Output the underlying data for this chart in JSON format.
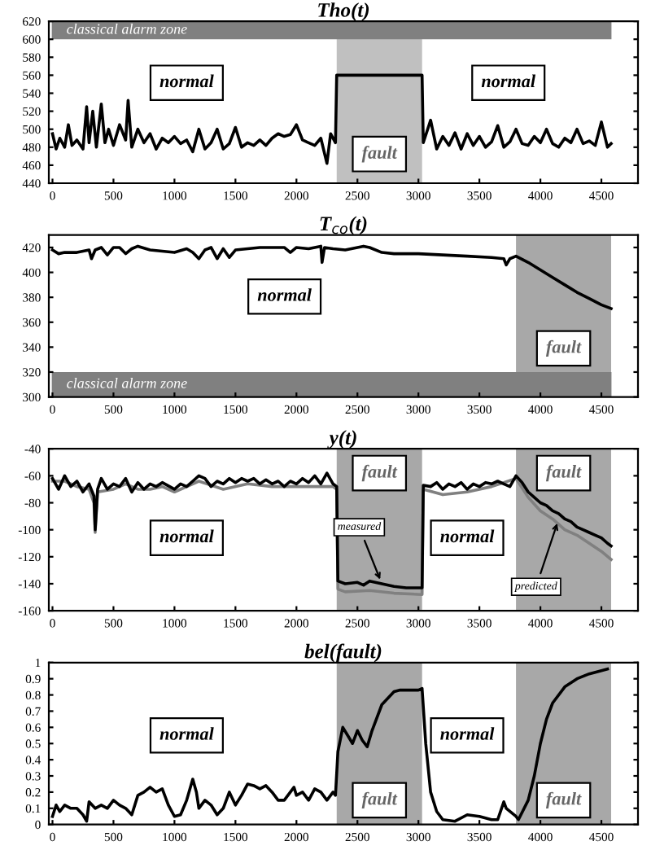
{
  "chart_data": [
    {
      "type": "line",
      "title": "Tho(t)",
      "xlim": [
        -30,
        4800
      ],
      "xticks": [
        0,
        500,
        1000,
        1500,
        2000,
        2500,
        3000,
        3500,
        4000,
        4500
      ],
      "ylim": [
        440,
        620
      ],
      "yticks": [
        440,
        460,
        480,
        500,
        520,
        540,
        560,
        580,
        600,
        620
      ],
      "grid": false,
      "legend": false,
      "x": [
        0,
        30,
        60,
        100,
        130,
        160,
        200,
        250,
        280,
        300,
        330,
        360,
        400,
        430,
        460,
        500,
        550,
        600,
        620,
        650,
        700,
        750,
        800,
        850,
        900,
        950,
        1000,
        1050,
        1100,
        1150,
        1200,
        1250,
        1300,
        1350,
        1400,
        1450,
        1500,
        1550,
        1600,
        1650,
        1700,
        1750,
        1800,
        1850,
        1900,
        1950,
        2000,
        2050,
        2100,
        2150,
        2200,
        2250,
        2280,
        2320,
        2330,
        3030,
        3040,
        3100,
        3150,
        3200,
        3250,
        3300,
        3350,
        3400,
        3450,
        3500,
        3550,
        3600,
        3650,
        3700,
        3750,
        3800,
        3850,
        3900,
        3950,
        4000,
        4050,
        4100,
        4150,
        4200,
        4250,
        4300,
        4350,
        4400,
        4450,
        4500,
        4550,
        4580
      ],
      "series": [
        {
          "color": "#000000",
          "values": [
            495,
            478,
            490,
            480,
            505,
            482,
            488,
            478,
            525,
            485,
            520,
            480,
            528,
            485,
            500,
            482,
            505,
            488,
            532,
            480,
            500,
            485,
            495,
            478,
            490,
            485,
            492,
            484,
            488,
            475,
            500,
            478,
            485,
            500,
            478,
            484,
            502,
            480,
            485,
            482,
            488,
            482,
            490,
            495,
            492,
            494,
            505,
            488,
            485,
            482,
            490,
            462,
            495,
            485,
            560,
            560,
            485,
            510,
            478,
            492,
            482,
            496,
            478,
            495,
            482,
            492,
            480,
            486,
            504,
            480,
            486,
            500,
            484,
            482,
            492,
            485,
            500,
            484,
            480,
            490,
            485,
            500,
            484,
            487,
            482,
            508,
            480,
            484
          ]
        }
      ],
      "annotations": [
        "normal",
        "normal"
      ],
      "bands": [
        {
          "axis": "x",
          "from": 2330,
          "to": 3030,
          "label": "fault",
          "color": "#c0c0c0"
        },
        {
          "axis": "y",
          "from": 600,
          "to": 620,
          "label": "classical alarm zone",
          "color": "#808080"
        }
      ]
    },
    {
      "type": "line",
      "title": "T$_{co}$(t)",
      "xlim": [
        -30,
        4800
      ],
      "xticks": [
        0,
        500,
        1000,
        1500,
        2000,
        2500,
        3000,
        3500,
        4000,
        4500
      ],
      "ylim": [
        300,
        430
      ],
      "yticks": [
        300,
        320,
        340,
        360,
        380,
        400,
        420
      ],
      "grid": false,
      "legend": false,
      "x": [
        0,
        50,
        100,
        200,
        300,
        320,
        350,
        400,
        450,
        500,
        550,
        600,
        650,
        700,
        800,
        900,
        1000,
        1100,
        1150,
        1200,
        1250,
        1300,
        1350,
        1400,
        1450,
        1500,
        1600,
        1700,
        1800,
        1900,
        1950,
        2000,
        2100,
        2200,
        2210,
        2230,
        2300,
        2400,
        2500,
        2550,
        2600,
        2700,
        2800,
        3000,
        3200,
        3400,
        3600,
        3700,
        3720,
        3750,
        3800,
        3900,
        4000,
        4100,
        4200,
        4300,
        4400,
        4500,
        4580
      ],
      "series": [
        {
          "color": "#000000",
          "values": [
            418,
            415,
            416,
            416,
            418,
            411,
            418,
            420,
            414,
            420,
            420,
            415,
            419,
            421,
            418,
            417,
            416,
            419,
            416,
            411,
            418,
            420,
            411,
            419,
            412,
            418,
            419,
            420,
            420,
            420,
            416,
            420,
            419,
            421,
            408,
            420,
            419,
            418,
            420,
            421,
            420,
            416,
            415,
            415,
            414,
            413,
            412,
            411,
            406,
            411,
            413,
            408,
            402,
            396,
            390,
            384,
            379,
            374,
            371
          ]
        }
      ],
      "annotations": [
        "normal"
      ],
      "bands": [
        {
          "axis": "x",
          "from": 3800,
          "to": 4580,
          "label": "fault",
          "color": "#a8a8a8"
        },
        {
          "axis": "y",
          "from": 300,
          "to": 320,
          "label": "classical alarm zone",
          "color": "#808080"
        }
      ]
    },
    {
      "type": "line",
      "title": "y(t)",
      "xlim": [
        -30,
        4800
      ],
      "xticks": [
        0,
        500,
        1000,
        1500,
        2000,
        2500,
        3000,
        3500,
        4000,
        4500
      ],
      "ylim": [
        -160,
        -40
      ],
      "yticks": [
        -160,
        -140,
        -120,
        -100,
        -80,
        -60,
        -40
      ],
      "grid": false,
      "legend": false,
      "series": [
        {
          "color": "#808080",
          "x": [
            0,
            100,
            200,
            300,
            340,
            350,
            370,
            500,
            600,
            700,
            800,
            900,
            1000,
            1200,
            1400,
            1600,
            1800,
            2000,
            2200,
            2300,
            2330,
            2340,
            2400,
            2600,
            2800,
            3030,
            3040,
            3200,
            3400,
            3600,
            3800,
            3900,
            4000,
            4100,
            4200,
            4300,
            4400,
            4500,
            4580
          ],
          "values": [
            -64,
            -64,
            -68,
            -70,
            -80,
            -102,
            -72,
            -70,
            -66,
            -70,
            -70,
            -68,
            -72,
            -64,
            -70,
            -66,
            -68,
            -68,
            -68,
            -68,
            -70,
            -144,
            -146,
            -145,
            -147,
            -148,
            -70,
            -74,
            -72,
            -68,
            -62,
            -76,
            -86,
            -92,
            -100,
            -104,
            -110,
            -116,
            -122
          ]
        },
        {
          "color": "#000000",
          "x": [
            0,
            50,
            100,
            150,
            200,
            250,
            300,
            340,
            350,
            370,
            400,
            450,
            500,
            550,
            600,
            650,
            700,
            750,
            800,
            850,
            900,
            1000,
            1050,
            1100,
            1150,
            1200,
            1250,
            1300,
            1350,
            1400,
            1450,
            1500,
            1550,
            1600,
            1650,
            1700,
            1750,
            1800,
            1850,
            1900,
            1950,
            2000,
            2050,
            2100,
            2150,
            2200,
            2250,
            2300,
            2330,
            2340,
            2400,
            2500,
            2550,
            2600,
            2700,
            2800,
            2900,
            3030,
            3040,
            3100,
            3150,
            3200,
            3250,
            3300,
            3350,
            3400,
            3450,
            3500,
            3550,
            3600,
            3650,
            3700,
            3750,
            3800,
            3850,
            3900,
            3950,
            4000,
            4050,
            4100,
            4150,
            4200,
            4250,
            4300,
            4350,
            4400,
            4450,
            4500,
            4550,
            4580
          ],
          "values": [
            -62,
            -70,
            -60,
            -68,
            -64,
            -72,
            -66,
            -75,
            -100,
            -70,
            -62,
            -70,
            -66,
            -68,
            -62,
            -72,
            -65,
            -70,
            -66,
            -68,
            -65,
            -70,
            -66,
            -68,
            -64,
            -60,
            -62,
            -68,
            -64,
            -66,
            -62,
            -65,
            -62,
            -64,
            -62,
            -66,
            -63,
            -66,
            -64,
            -68,
            -64,
            -66,
            -62,
            -65,
            -60,
            -66,
            -58,
            -66,
            -68,
            -138,
            -140,
            -139,
            -141,
            -138,
            -140,
            -142,
            -143,
            -143,
            -67,
            -68,
            -65,
            -70,
            -66,
            -68,
            -65,
            -70,
            -66,
            -68,
            -65,
            -66,
            -64,
            -66,
            -68,
            -60,
            -65,
            -72,
            -76,
            -80,
            -82,
            -86,
            -88,
            -92,
            -94,
            -98,
            -100,
            -102,
            -104,
            -106,
            -110,
            -112
          ]
        }
      ],
      "annotations": [
        {
          "text": "measured",
          "x": 2700,
          "y": -140
        },
        {
          "text": "predicted",
          "x": 4150,
          "y": -92
        },
        "normal",
        "normal"
      ],
      "bands": [
        {
          "axis": "x",
          "from": 2330,
          "to": 3030,
          "label": "fault",
          "color": "#a8a8a8"
        },
        {
          "axis": "x",
          "from": 3800,
          "to": 4580,
          "label": "fault",
          "color": "#a8a8a8"
        }
      ]
    },
    {
      "type": "line",
      "title": "bel(fault)",
      "xlim": [
        -30,
        4800
      ],
      "xticks": [
        0,
        500,
        1000,
        1500,
        2000,
        2500,
        3000,
        3500,
        4000,
        4500
      ],
      "ylim": [
        0,
        1
      ],
      "yticks": [
        0,
        0.1,
        0.2,
        0.3,
        0.4,
        0.5,
        0.6,
        0.7,
        0.8,
        0.9,
        1
      ],
      "grid": false,
      "legend": false,
      "x": [
        0,
        30,
        60,
        100,
        150,
        200,
        250,
        280,
        300,
        350,
        400,
        450,
        500,
        550,
        600,
        650,
        700,
        750,
        800,
        850,
        900,
        950,
        1000,
        1050,
        1100,
        1150,
        1180,
        1200,
        1250,
        1300,
        1350,
        1400,
        1450,
        1500,
        1550,
        1600,
        1650,
        1700,
        1750,
        1800,
        1850,
        1900,
        1950,
        1980,
        2000,
        2050,
        2100,
        2150,
        2200,
        2250,
        2300,
        2320,
        2340,
        2380,
        2420,
        2460,
        2500,
        2540,
        2580,
        2620,
        2700,
        2800,
        2850,
        3000,
        3030,
        3060,
        3100,
        3150,
        3200,
        3300,
        3400,
        3500,
        3600,
        3650,
        3700,
        3720,
        3800,
        3820,
        3900,
        3950,
        4000,
        4050,
        4100,
        4200,
        4300,
        4400,
        4500,
        4550
      ],
      "annotations": [
        "normal",
        "normal"
      ],
      "series": [
        {
          "color": "#000000",
          "values": [
            0.05,
            0.12,
            0.08,
            0.12,
            0.1,
            0.1,
            0.06,
            0.02,
            0.14,
            0.1,
            0.12,
            0.1,
            0.15,
            0.12,
            0.1,
            0.06,
            0.18,
            0.2,
            0.23,
            0.2,
            0.22,
            0.12,
            0.05,
            0.06,
            0.15,
            0.28,
            0.2,
            0.1,
            0.15,
            0.12,
            0.06,
            0.1,
            0.2,
            0.12,
            0.18,
            0.25,
            0.24,
            0.22,
            0.24,
            0.2,
            0.15,
            0.15,
            0.2,
            0.23,
            0.18,
            0.2,
            0.15,
            0.22,
            0.2,
            0.15,
            0.2,
            0.18,
            0.45,
            0.6,
            0.55,
            0.5,
            0.58,
            0.52,
            0.48,
            0.58,
            0.74,
            0.82,
            0.83,
            0.83,
            0.84,
            0.5,
            0.2,
            0.08,
            0.03,
            0.02,
            0.06,
            0.05,
            0.03,
            0.03,
            0.14,
            0.1,
            0.05,
            0.03,
            0.15,
            0.3,
            0.5,
            0.65,
            0.75,
            0.85,
            0.9,
            0.93,
            0.95,
            0.96
          ]
        }
      ],
      "bands": [
        {
          "axis": "x",
          "from": 2330,
          "to": 3030,
          "label": "fault",
          "color": "#a8a8a8"
        },
        {
          "axis": "x",
          "from": 3800,
          "to": 4580,
          "label": "fault",
          "color": "#a8a8a8"
        }
      ]
    }
  ]
}
